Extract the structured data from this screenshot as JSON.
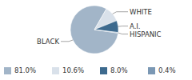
{
  "chart_data": {
    "type": "pie",
    "categories": [
      "BLACK",
      "WHITE",
      "A.I.",
      "HISPANIC"
    ],
    "values": [
      81.0,
      10.6,
      8.0,
      0.4
    ],
    "value_labels": [
      "81.0%",
      "10.6%",
      "8.0%",
      "0.4%"
    ],
    "colors": [
      "#a2b5c8",
      "#d9e1ea",
      "#3d6a8e",
      "#7b98b4"
    ]
  }
}
